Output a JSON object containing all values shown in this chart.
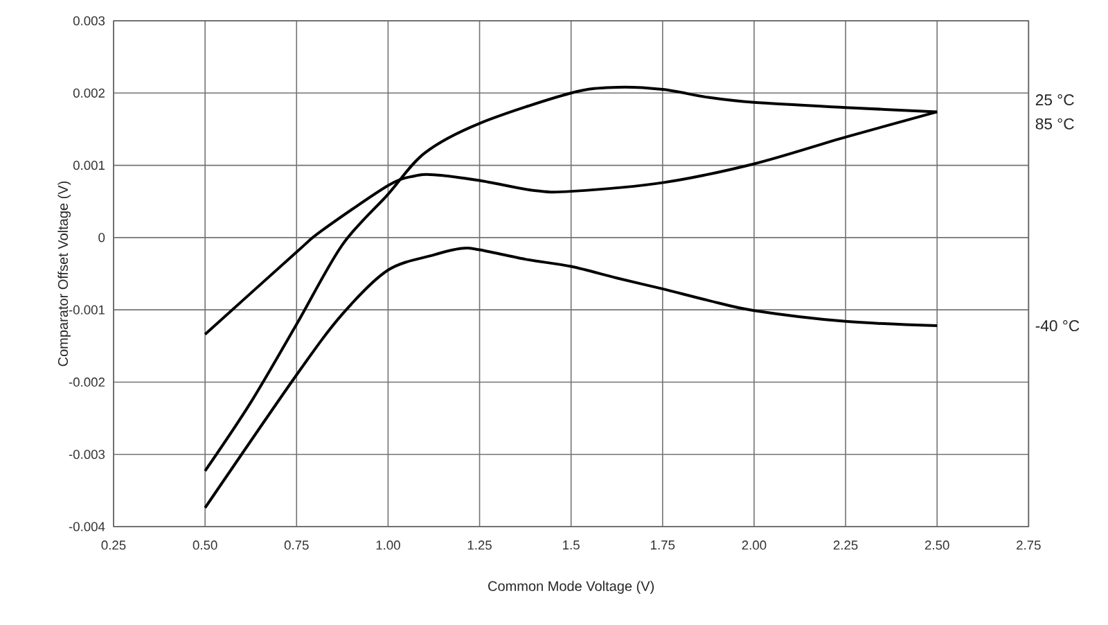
{
  "chart_data": {
    "type": "line",
    "xlabel": "Common Mode Voltage (V)",
    "ylabel": "Comparator Offset Voltage (V)",
    "xlim": [
      0.25,
      2.75
    ],
    "ylim": [
      -0.004,
      0.003
    ],
    "xticks": [
      0.25,
      {
        "value": 0.5,
        "label": "0.50"
      },
      0.75,
      {
        "value": 1.0,
        "label": "1.00"
      },
      1.25,
      1.5,
      1.75,
      {
        "value": 2.0,
        "label": "2.00"
      },
      2.25,
      {
        "value": 2.5,
        "label": "2.50"
      },
      2.75
    ],
    "yticks": [
      -0.004,
      -0.003,
      -0.002,
      -0.001,
      0,
      0.001,
      0.002,
      0.003
    ],
    "grid": true,
    "series": [
      {
        "name": "25 °C",
        "color": "#000000",
        "x": [
          0.5,
          0.625,
          0.75,
          0.875,
          1.0,
          1.1,
          1.25,
          1.5,
          1.625,
          1.75,
          1.875,
          2.0,
          2.25,
          2.5
        ],
        "values": [
          -0.00323,
          -0.00228,
          -0.0012,
          -0.0001,
          0.0006,
          0.00117,
          0.00158,
          0.002,
          0.00208,
          0.00205,
          0.00194,
          0.00187,
          0.0018,
          0.00174
        ]
      },
      {
        "name": "85 °C",
        "color": "#000000",
        "x": [
          0.5,
          0.75,
          0.82,
          1.0,
          1.07,
          1.125,
          1.25,
          1.4,
          1.5,
          1.75,
          2.0,
          2.25,
          2.5
        ],
        "values": [
          -0.00134,
          -0.0002,
          0.0001,
          0.00072,
          0.00085,
          0.00087,
          0.00079,
          0.00065,
          0.00064,
          0.00076,
          0.00102,
          0.00139,
          0.00174
        ]
      },
      {
        "name": "-40 °C",
        "color": "#000000",
        "x": [
          0.5,
          0.75,
          0.875,
          1.0,
          1.125,
          1.2,
          1.25,
          1.375,
          1.5,
          1.625,
          1.75,
          1.875,
          2.0,
          2.25,
          2.5
        ],
        "values": [
          -0.00374,
          -0.0019,
          -0.00106,
          -0.00045,
          -0.00024,
          -0.00015,
          -0.00017,
          -0.0003,
          -0.0004,
          -0.00056,
          -0.00071,
          -0.00087,
          -0.00101,
          -0.00116,
          -0.00122
        ]
      }
    ]
  }
}
